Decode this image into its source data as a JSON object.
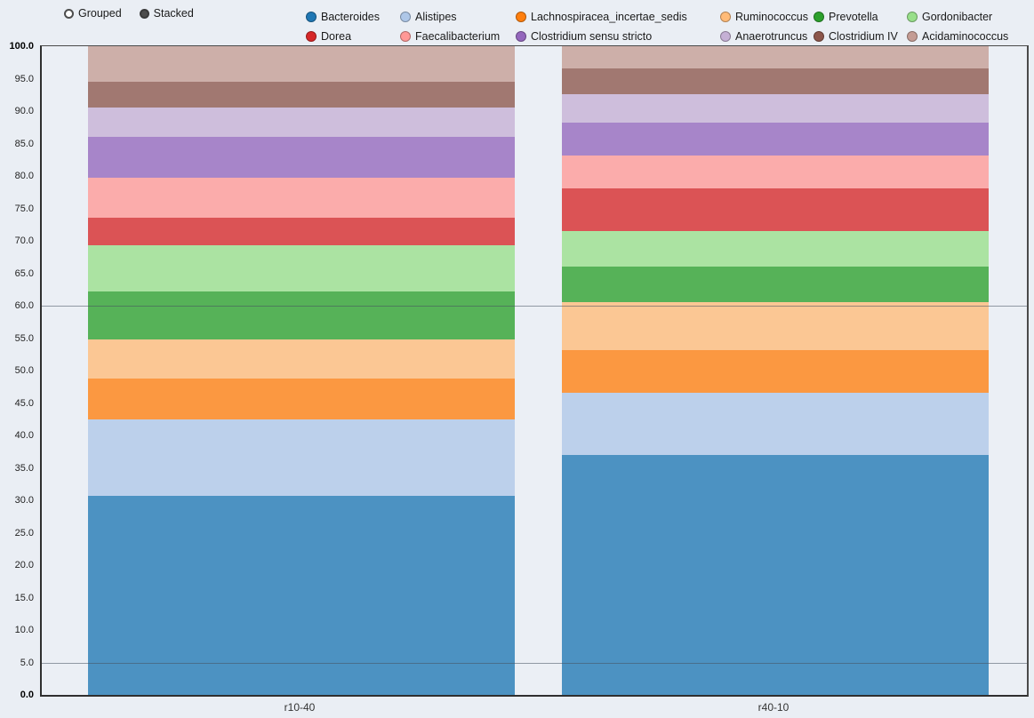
{
  "controls": {
    "grouped_label": "Grouped",
    "stacked_label": "Stacked",
    "selected": "Stacked"
  },
  "chart_data": {
    "type": "bar",
    "stacked": true,
    "title": "",
    "xlabel": "",
    "ylabel": "",
    "legend_position": "top",
    "categories": [
      "r10-40",
      "r40-10"
    ],
    "ylim": [
      0,
      100
    ],
    "ytick_step": 5,
    "highlight_gridlines": [
      5,
      60
    ],
    "series": [
      {
        "name": "Bacteroides",
        "color": "#1f77b4",
        "values": [
          30.7,
          37.0
        ]
      },
      {
        "name": "Alistipes",
        "color": "#aec7e8",
        "values": [
          11.8,
          9.6
        ]
      },
      {
        "name": "Lachnospiracea_incertae_sedis",
        "color": "#ff7f0e",
        "values": [
          6.3,
          6.5
        ]
      },
      {
        "name": "Ruminococcus",
        "color": "#ffbb78",
        "values": [
          6.0,
          7.4
        ]
      },
      {
        "name": "Prevotella",
        "color": "#2ca02c",
        "values": [
          7.4,
          5.6
        ]
      },
      {
        "name": "Gordonibacter",
        "color": "#98df8a",
        "values": [
          7.1,
          5.4
        ]
      },
      {
        "name": "Dorea",
        "color": "#d62728",
        "values": [
          4.2,
          6.6
        ]
      },
      {
        "name": "Faecalibacterium",
        "color": "#ff9896",
        "values": [
          6.2,
          5.0
        ]
      },
      {
        "name": "Clostridium sensu stricto",
        "color": "#9467bd",
        "values": [
          6.3,
          5.1
        ]
      },
      {
        "name": "Anaerotruncus",
        "color": "#c5b0d5",
        "values": [
          4.5,
          4.4
        ]
      },
      {
        "name": "Clostridium IV",
        "color": "#8c564b",
        "values": [
          4.0,
          4.0
        ]
      },
      {
        "name": "Acidaminococcus",
        "color": "#c49c94",
        "values": [
          5.5,
          3.4
        ]
      }
    ]
  }
}
